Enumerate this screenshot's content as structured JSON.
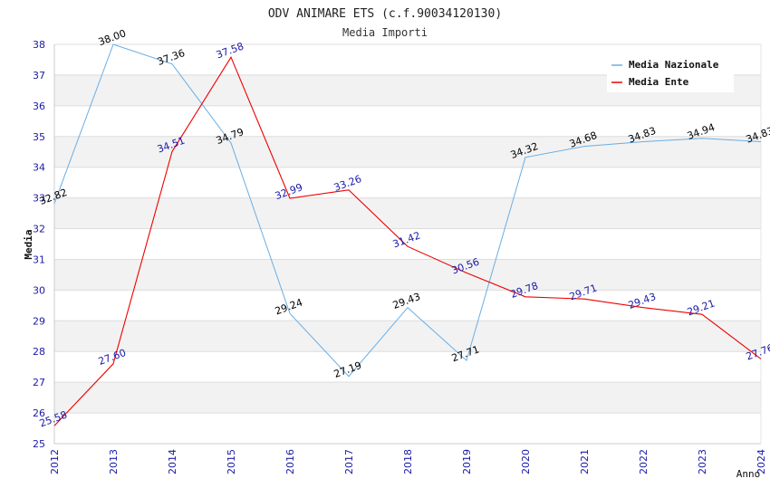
{
  "chart_data": {
    "type": "line",
    "title": "ODV ANIMARE ETS (c.f.90034120130)",
    "subtitle": "Media Importi",
    "xlabel": "Anno",
    "ylabel": "Media",
    "ylim": [
      25,
      38
    ],
    "yticks": [
      "25",
      "26",
      "27",
      "28",
      "29",
      "30",
      "31",
      "32",
      "33",
      "34",
      "35",
      "36",
      "37",
      "38"
    ],
    "categories": [
      "2012",
      "2013",
      "2014",
      "2015",
      "2016",
      "2017",
      "2018",
      "2019",
      "2020",
      "2021",
      "2022",
      "2023",
      "2024"
    ],
    "series": [
      {
        "name": "Media Nazionale",
        "color": "#6aaee4",
        "label_color": "#000000",
        "values": [
          32.82,
          38.0,
          37.36,
          34.79,
          29.24,
          27.19,
          29.43,
          27.71,
          34.32,
          34.68,
          34.83,
          34.94,
          34.83
        ],
        "labels": [
          "32.82",
          "38.00",
          "37.36",
          "34.79",
          "29.24",
          "27.19",
          "29.43",
          "27.71",
          "34.32",
          "34.68",
          "34.83",
          "34.94",
          "34.83"
        ]
      },
      {
        "name": "Media Ente",
        "color": "#ee0000",
        "label_color": "#1a1aa6",
        "values": [
          25.58,
          27.6,
          34.51,
          37.58,
          32.99,
          33.26,
          31.42,
          30.56,
          29.78,
          29.71,
          29.43,
          29.21,
          27.76
        ],
        "labels": [
          "25.58",
          "27.60",
          "34.51",
          "37.58",
          "32.99",
          "33.26",
          "31.42",
          "30.56",
          "29.78",
          "29.71",
          "29.43",
          "29.21",
          "27.76"
        ]
      }
    ],
    "legend_position": "top-right",
    "grid": true
  }
}
